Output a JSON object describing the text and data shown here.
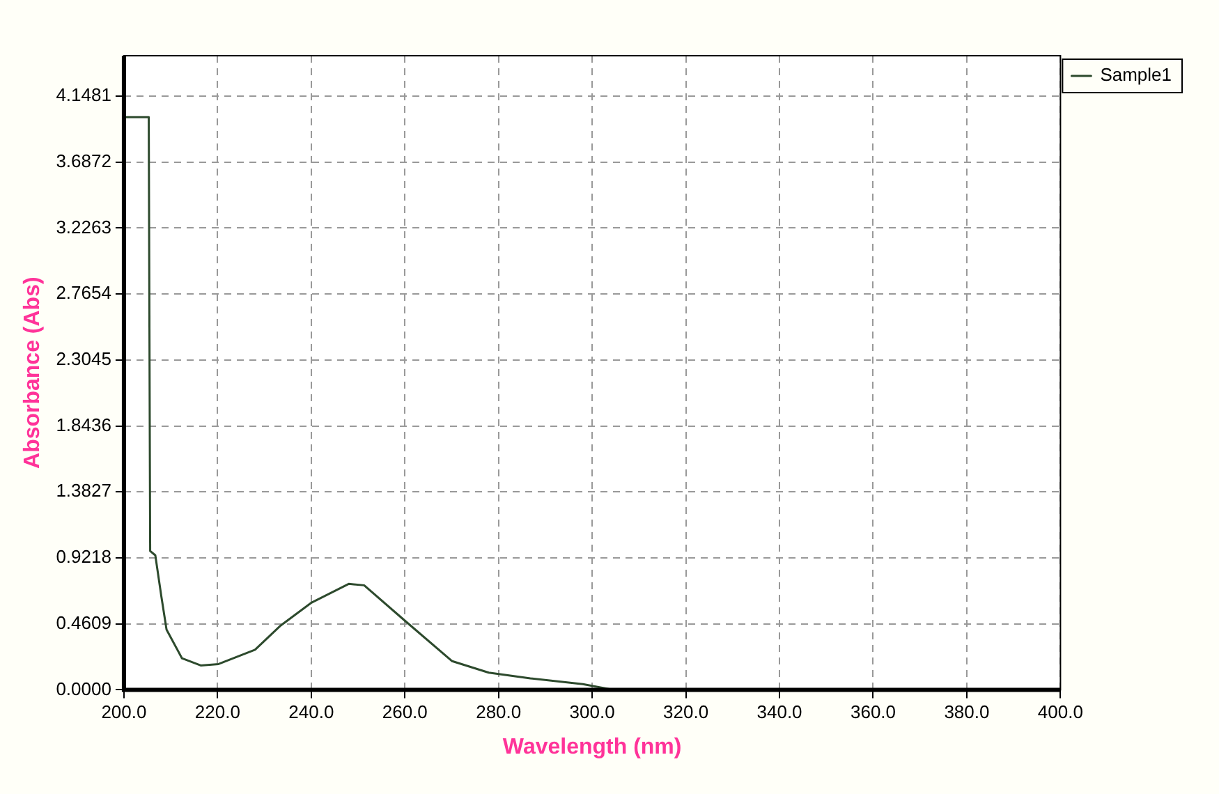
{
  "chart_data": {
    "type": "line",
    "xlabel": "Wavelength (nm)",
    "ylabel": "Absorbance (Abs)",
    "x": [
      200,
      205.3,
      205.6,
      206.7,
      208,
      209.1,
      212.4,
      216.4,
      220.2,
      228,
      233.5,
      240.1,
      248,
      251.3,
      260.1,
      270.1,
      277.9,
      286.8,
      298,
      304.5,
      320,
      340,
      360,
      380,
      400
    ],
    "series": [
      {
        "name": "Sample1",
        "color": "#2d4a2d",
        "values": [
          4.0,
          4.0,
          0.97,
          0.94,
          0.65,
          0.42,
          0.22,
          0.17,
          0.18,
          0.28,
          0.45,
          0.61,
          0.74,
          0.73,
          0.48,
          0.2,
          0.12,
          0.08,
          0.04,
          0,
          0,
          0,
          0,
          0,
          0
        ]
      }
    ],
    "xlim": [
      200,
      400
    ],
    "xticks": [
      {
        "value": 200,
        "label": "200.0"
      },
      {
        "value": 220,
        "label": "220.0"
      },
      {
        "value": 240,
        "label": "240.0"
      },
      {
        "value": 260,
        "label": "260.0"
      },
      {
        "value": 280,
        "label": "280.0"
      },
      {
        "value": 300,
        "label": "300.0"
      },
      {
        "value": 320,
        "label": "320.0"
      },
      {
        "value": 340,
        "label": "340.0"
      },
      {
        "value": 360,
        "label": "360.0"
      },
      {
        "value": 380,
        "label": "380.0"
      },
      {
        "value": 400,
        "label": "400.0"
      }
    ],
    "ylim": [
      0,
      4.43
    ],
    "yticks": [
      {
        "value": 0,
        "label": "0.0000"
      },
      0.4609,
      0.9218,
      1.3827,
      1.8436,
      2.3045,
      2.7654,
      3.2263,
      3.6872,
      4.1481
    ],
    "grid": true,
    "legend": "top right",
    "marker": "none",
    "line_style": "solid"
  }
}
